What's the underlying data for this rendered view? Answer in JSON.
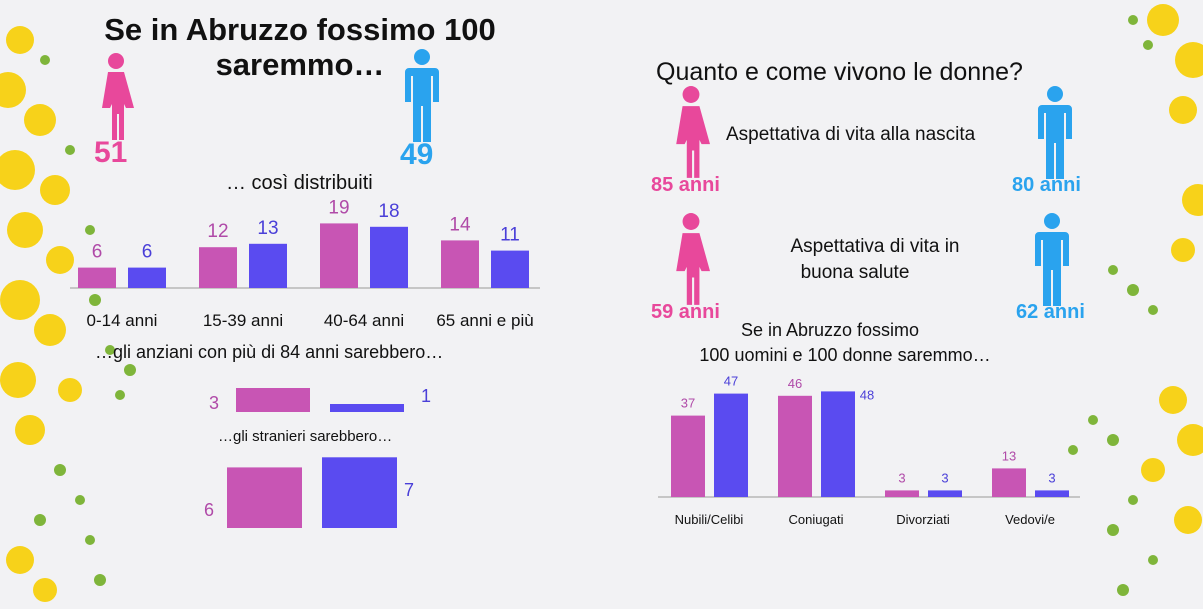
{
  "colors": {
    "female_bar": "#c855b4",
    "male_bar": "#5a4bf0",
    "female_icon": "#e8489b",
    "male_icon": "#2aa3ee",
    "female_label": "#b04aa8",
    "male_label": "#4a3fd8"
  },
  "left": {
    "title_line1": "Se in Abruzzo fossimo 100",
    "title_line2": "saremmo…",
    "female_count": "51",
    "male_count": "49",
    "distribution_caption": "… così distribuiti",
    "elderly_caption": "…gli anziani con più di 84 anni sarebbero…",
    "foreigners_caption": "…gli stranieri sarebbero…"
  },
  "right": {
    "title": "Quanto e come vivono le donne?",
    "life_expectancy_label": "Aspettativa di vita alla nascita",
    "female_life": "85 anni",
    "male_life": "80 anni",
    "healthy_label_line1": "Aspettativa di vita in",
    "healthy_label_line2": "buona  salute",
    "female_healthy": "59 anni",
    "male_healthy": "62 anni",
    "marital_caption_line1": "Se in Abruzzo fossimo",
    "marital_caption_line2": "100 uomini e 100 donne saremmo…"
  },
  "chart_data": [
    {
      "type": "bar",
      "categories": [
        "0-14 anni",
        "15-39 anni",
        "40-64 anni",
        "65 anni e più"
      ],
      "series": [
        {
          "values": [
            6,
            12,
            19,
            14
          ]
        },
        {
          "values": [
            6,
            13,
            18,
            11
          ]
        }
      ]
    },
    {
      "type": "bar",
      "categories": [
        ""
      ],
      "series": [
        {
          "values": [
            3
          ]
        },
        {
          "values": [
            1
          ]
        }
      ]
    },
    {
      "type": "bar",
      "categories": [
        ""
      ],
      "series": [
        {
          "values": [
            6
          ]
        },
        {
          "values": [
            7
          ]
        }
      ]
    },
    {
      "type": "bar",
      "categories": [
        "Nubili/Celibi",
        "Coniugati",
        "Divorziati",
        "Vedovi/e"
      ],
      "series": [
        {
          "values": [
            37,
            46,
            3,
            13
          ]
        },
        {
          "values": [
            47,
            48,
            3,
            3
          ]
        }
      ]
    }
  ]
}
